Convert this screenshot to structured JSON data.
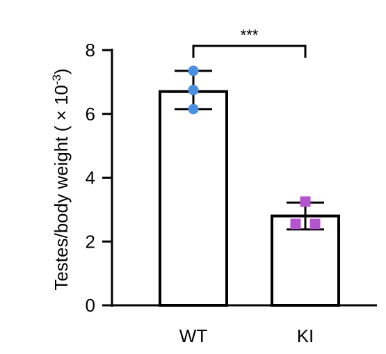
{
  "chart_data": {
    "type": "bar",
    "categories": [
      "WT",
      "KI"
    ],
    "values": [
      6.7,
      2.8
    ],
    "error": [
      {
        "low": 6.15,
        "high": 7.35
      },
      {
        "low": 2.38,
        "high": 3.22
      }
    ],
    "points": [
      [
        6.15,
        6.75,
        7.35
      ],
      [
        2.55,
        2.55,
        3.25
      ]
    ],
    "point_colors": [
      "#4a90e2",
      "#b455cf"
    ],
    "point_shapes": [
      "circle",
      "square"
    ],
    "ylabel": "Testes/body weight ( × 10",
    "ylabel_exp": "-3",
    "ylabel_close": ")",
    "ylim": [
      0,
      8
    ],
    "yticks": [
      0,
      2,
      4,
      6,
      8
    ],
    "ytick_labels": [
      "0",
      "2",
      "4",
      "6",
      "8"
    ],
    "significance": "***",
    "grid": false
  }
}
